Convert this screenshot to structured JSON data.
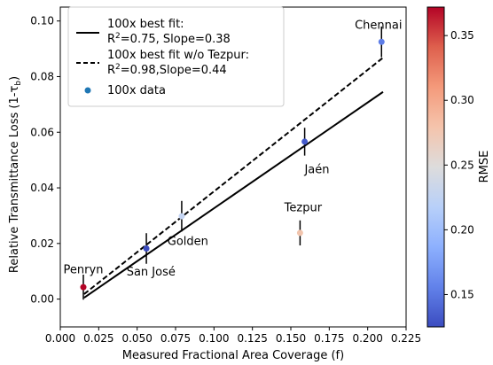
{
  "chart_data": {
    "type": "scatter",
    "xlabel": "Measured Fractional Area Coverage (f)",
    "ylabel": "Relative Transmittance Loss (1-τ_b)",
    "ylabel_parts": [
      "Relative Transmittance Loss (1-",
      "τ",
      "b",
      ")"
    ],
    "xlim": [
      0.0,
      0.225
    ],
    "ylim": [
      -0.01,
      0.105
    ],
    "x_ticks": [
      0.0,
      0.025,
      0.05,
      0.075,
      0.1,
      0.125,
      0.15,
      0.175,
      0.2,
      0.225
    ],
    "x_tick_labels": [
      "0.000",
      "0.025",
      "0.050",
      "0.075",
      "0.100",
      "0.125",
      "0.150",
      "0.175",
      "0.200",
      "0.225"
    ],
    "y_ticks": [
      0.0,
      0.02,
      0.04,
      0.06,
      0.08,
      0.1
    ],
    "y_tick_labels": [
      "0.00",
      "0.02",
      "0.04",
      "0.06",
      "0.08",
      "0.10"
    ],
    "grid": false,
    "legend_position": "upper-left",
    "legend": [
      {
        "label": "100x best fit:",
        "label2_prefix": "R",
        "label2_sup": "2",
        "label2_rest": "=0.75, Slope=0.38",
        "style": "solid"
      },
      {
        "label": "100x best fit w/o Tezpur:",
        "label2_prefix": "R",
        "label2_sup": "2",
        "label2_rest": "=0.98,Slope=0.44",
        "style": "dashed"
      },
      {
        "label": "100x data",
        "style": "marker",
        "color": "#1f77b4"
      }
    ],
    "fit_lines": [
      {
        "name": "100x best fit",
        "style": "solid",
        "x": [
          0.0155,
          0.21
        ],
        "y": [
          0.0005,
          0.0745
        ]
      },
      {
        "name": "100x best fit w/o Tezpur",
        "style": "dashed",
        "x": [
          0.0155,
          0.21
        ],
        "y": [
          0.0018,
          0.0868
        ]
      }
    ],
    "points": [
      {
        "label": "Penryn",
        "x": 0.015,
        "y": 0.0043,
        "err": 0.0045,
        "rmse": 0.37,
        "color": "#b40426"
      },
      {
        "label": "San José",
        "x": 0.056,
        "y": 0.0182,
        "err": 0.0055,
        "rmse": 0.14,
        "color": "#3b4cc0"
      },
      {
        "label": "Golden",
        "x": 0.079,
        "y": 0.0298,
        "err": 0.0055,
        "rmse": 0.22,
        "color": "#c5d5f3"
      },
      {
        "label": "Tezpur",
        "x": 0.156,
        "y": 0.0238,
        "err": 0.0045,
        "rmse": 0.28,
        "color": "#f1c4ad"
      },
      {
        "label": "Jaén",
        "x": 0.159,
        "y": 0.0566,
        "err": 0.005,
        "rmse": 0.15,
        "color": "#445acc"
      },
      {
        "label": "Chennai",
        "x": 0.209,
        "y": 0.0925,
        "err": 0.0055,
        "rmse": 0.17,
        "color": "#5e7de7"
      }
    ],
    "colorbar": {
      "label": "RMSE",
      "range": [
        0.125,
        0.372
      ],
      "ticks": [
        0.15,
        0.2,
        0.25,
        0.3,
        0.35
      ],
      "tick_labels": [
        "0.15",
        "0.20",
        "0.25",
        "0.30",
        "0.35"
      ],
      "colormap": "coolwarm",
      "stops": [
        "#3b4cc0",
        "#6282ea",
        "#8db0fe",
        "#b8d0f9",
        "#dddcdc",
        "#f5c4ac",
        "#f49a7b",
        "#de604d",
        "#b40426"
      ]
    }
  }
}
